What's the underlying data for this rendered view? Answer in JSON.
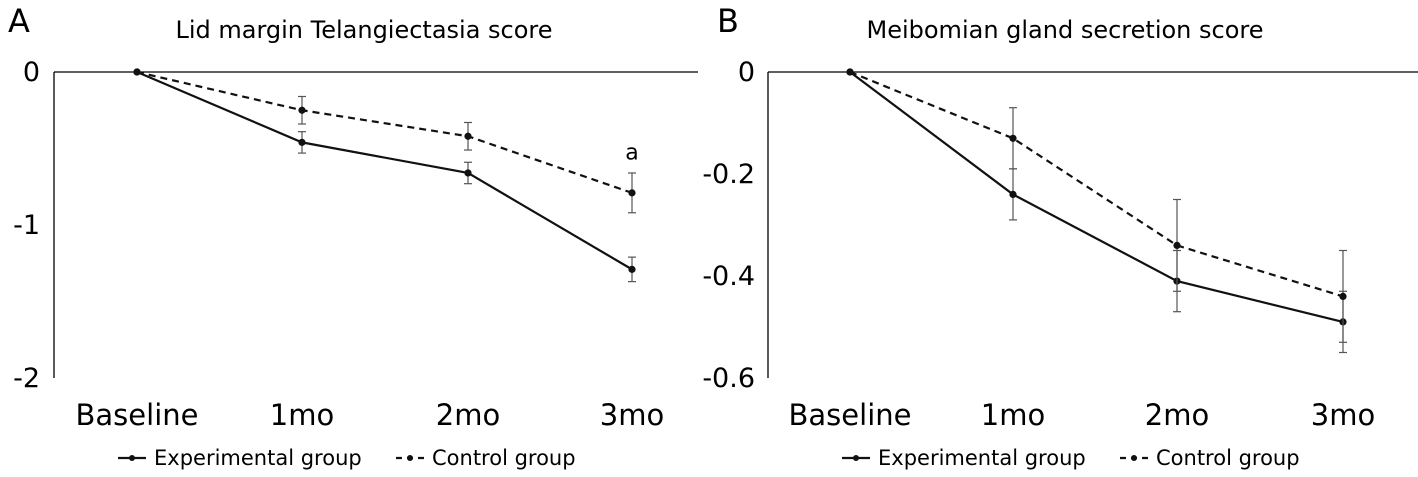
{
  "chart_data": [
    {
      "panel_label": "A",
      "type": "line",
      "title": "Lid margin Telangiectasia score",
      "categories": [
        "Baseline",
        "1mo",
        "2mo",
        "3mo"
      ],
      "ylim": [
        -2,
        0
      ],
      "yticks": [
        0,
        -1,
        -2
      ],
      "ytick_labels": [
        "0",
        "-1",
        "-2"
      ],
      "xlabel": "",
      "ylabel": "",
      "grid": false,
      "legend_position": "bottom",
      "series": [
        {
          "name": "Experimental group",
          "style": "solid",
          "values": [
            0,
            -0.46,
            -0.66,
            -1.29
          ],
          "errors": [
            0,
            0.07,
            0.07,
            0.08
          ]
        },
        {
          "name": "Control group",
          "style": "dashed",
          "values": [
            0,
            -0.25,
            -0.42,
            -0.79
          ],
          "errors": [
            0,
            0.09,
            0.09,
            0.13
          ]
        }
      ],
      "annotations": [
        {
          "text": "a",
          "category": "3mo",
          "value": -0.52
        }
      ]
    },
    {
      "panel_label": "B",
      "type": "line",
      "title": "Meibomian gland secretion score",
      "categories": [
        "Baseline",
        "1mo",
        "2mo",
        "3mo"
      ],
      "ylim": [
        -0.6,
        0
      ],
      "yticks": [
        0,
        -0.2,
        -0.4,
        -0.6
      ],
      "ytick_labels": [
        "0",
        "-0.2",
        "-0.4",
        "-0.6"
      ],
      "xlabel": "",
      "ylabel": "",
      "grid": false,
      "legend_position": "bottom",
      "series": [
        {
          "name": "Experimental group",
          "style": "solid",
          "values": [
            0,
            -0.24,
            -0.41,
            -0.49
          ],
          "errors": [
            0,
            0.05,
            0.06,
            0.06
          ]
        },
        {
          "name": "Control group",
          "style": "dashed",
          "values": [
            0,
            -0.13,
            -0.34,
            -0.44
          ],
          "errors": [
            0,
            0.06,
            0.09,
            0.09
          ]
        }
      ],
      "annotations": []
    }
  ]
}
